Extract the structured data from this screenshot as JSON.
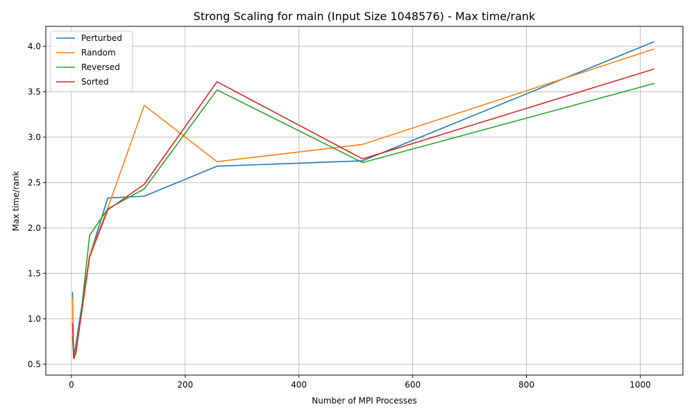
{
  "chart_data": {
    "type": "line",
    "title": "Strong Scaling for main (Input Size 1048576) - Max time/rank",
    "xlabel": "Number of MPI Processes",
    "ylabel": "Max time/rank",
    "xlim": [
      -45,
      1075
    ],
    "ylim": [
      0.38,
      4.22
    ],
    "xticks": [
      0,
      200,
      400,
      600,
      800,
      1000
    ],
    "yticks": [
      0.5,
      1.0,
      1.5,
      2.0,
      2.5,
      3.0,
      3.5,
      4.0
    ],
    "xtick_labels": [
      "0",
      "200",
      "400",
      "600",
      "800",
      "1000"
    ],
    "ytick_labels": [
      "0.5",
      "1.0",
      "1.5",
      "2.0",
      "2.5",
      "3.0",
      "3.5",
      "4.0"
    ],
    "grid": true,
    "legend_position": "top-left",
    "x": [
      2,
      4,
      8,
      16,
      32,
      64,
      128,
      256,
      512,
      1024
    ],
    "series": [
      {
        "name": "Perturbed",
        "color": "#1f77b4",
        "values": [
          1.29,
          0.58,
          0.72,
          1.05,
          1.69,
          2.33,
          2.35,
          2.68,
          2.74,
          4.05
        ]
      },
      {
        "name": "Random",
        "color": "#ff7f0e",
        "values": [
          1.23,
          0.57,
          0.66,
          1.0,
          1.7,
          2.22,
          3.35,
          2.73,
          2.92,
          3.97
        ]
      },
      {
        "name": "Reversed",
        "color": "#2ca02c",
        "values": [
          0.8,
          0.57,
          0.62,
          1.0,
          1.92,
          2.21,
          2.43,
          3.52,
          2.72,
          3.59
        ]
      },
      {
        "name": "Sorted",
        "color": "#d62728",
        "values": [
          0.95,
          0.56,
          0.63,
          0.98,
          1.68,
          2.2,
          2.48,
          3.61,
          2.76,
          3.75
        ]
      }
    ]
  }
}
